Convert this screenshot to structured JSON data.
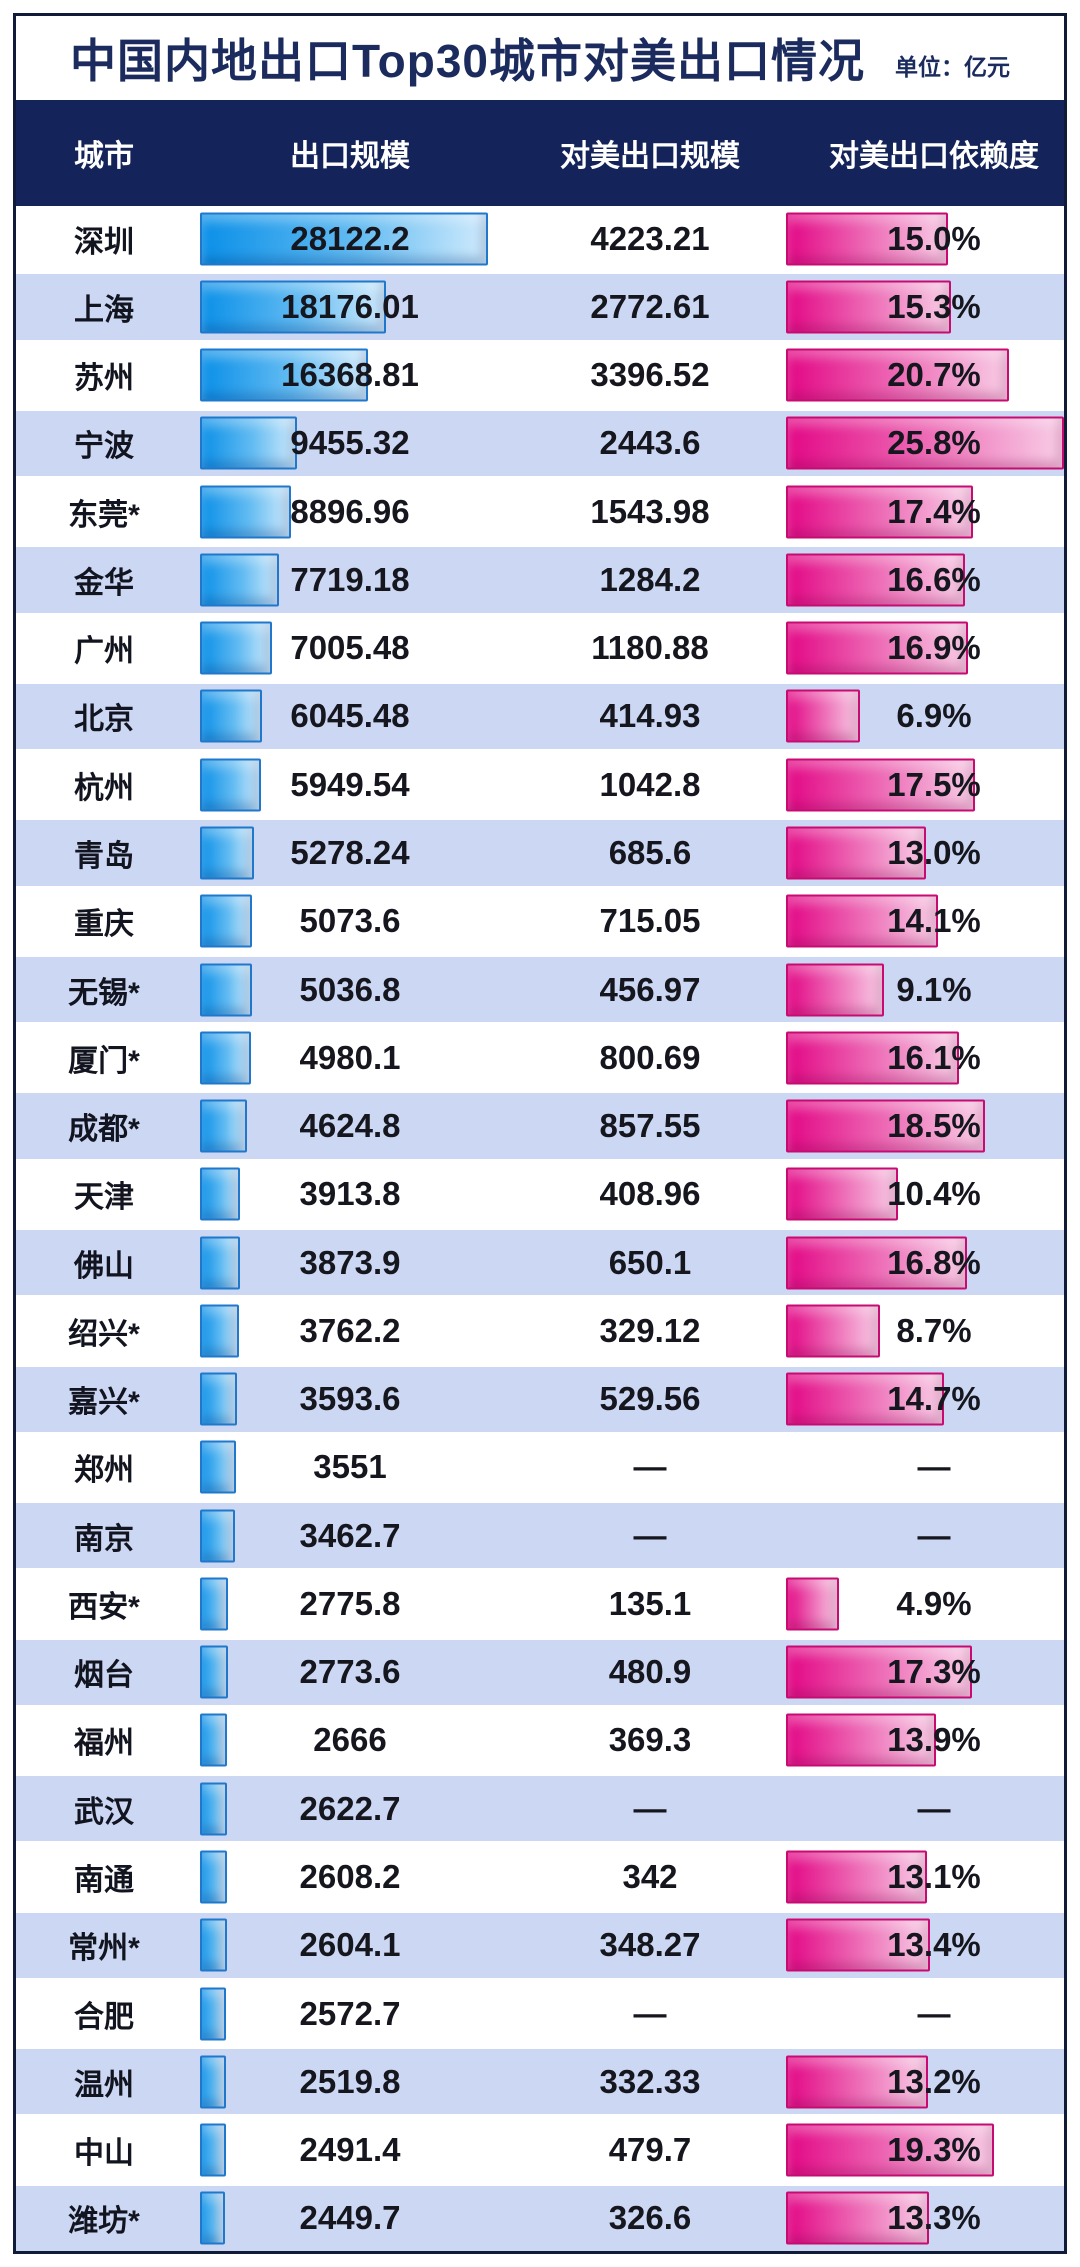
{
  "title": "中国内地出口Top30城市对美出口情况",
  "unit_label": "单位：亿元",
  "columns": [
    "城市",
    "出口规模",
    "对美出口规模",
    "对美出口依赖度"
  ],
  "missing_placeholder": "—",
  "colors": {
    "title_text": "#1b2b5e",
    "header_bg": "#14245a",
    "header_text": "#ffffff",
    "row_alt_bg": "#ccd8f3",
    "frame_border": "#101b38",
    "export_bar_start": "#0b90e8",
    "export_bar_end": "#cfeafc",
    "export_bar_border": "#1f78cc",
    "dependency_bar_start": "#e30886",
    "dependency_bar_end": "#f8cde6",
    "dependency_bar_border": "#c70b72",
    "value_text": "#15161e"
  },
  "rows": [
    {
      "city": "深圳",
      "export": "28122.2",
      "export_value": 28122.2,
      "us": "4223.21",
      "dep": "15.0%",
      "dep_value": 15.0
    },
    {
      "city": "上海",
      "export": "18176.01",
      "export_value": 18176.01,
      "us": "2772.61",
      "dep": "15.3%",
      "dep_value": 15.3
    },
    {
      "city": "苏州",
      "export": "16368.81",
      "export_value": 16368.81,
      "us": "3396.52",
      "dep": "20.7%",
      "dep_value": 20.7
    },
    {
      "city": "宁波",
      "export": "9455.32",
      "export_value": 9455.32,
      "us": "2443.6",
      "dep": "25.8%",
      "dep_value": 25.8
    },
    {
      "city": "东莞*",
      "export": "8896.96",
      "export_value": 8896.96,
      "us": "1543.98",
      "dep": "17.4%",
      "dep_value": 17.4
    },
    {
      "city": "金华",
      "export": "7719.18",
      "export_value": 7719.18,
      "us": "1284.2",
      "dep": "16.6%",
      "dep_value": 16.6
    },
    {
      "city": "广州",
      "export": "7005.48",
      "export_value": 7005.48,
      "us": "1180.88",
      "dep": "16.9%",
      "dep_value": 16.9
    },
    {
      "city": "北京",
      "export": "6045.48",
      "export_value": 6045.48,
      "us": "414.93",
      "dep": "6.9%",
      "dep_value": 6.9
    },
    {
      "city": "杭州",
      "export": "5949.54",
      "export_value": 5949.54,
      "us": "1042.8",
      "dep": "17.5%",
      "dep_value": 17.5
    },
    {
      "city": "青岛",
      "export": "5278.24",
      "export_value": 5278.24,
      "us": "685.6",
      "dep": "13.0%",
      "dep_value": 13.0
    },
    {
      "city": "重庆",
      "export": "5073.6",
      "export_value": 5073.6,
      "us": "715.05",
      "dep": "14.1%",
      "dep_value": 14.1
    },
    {
      "city": "无锡*",
      "export": "5036.8",
      "export_value": 5036.8,
      "us": "456.97",
      "dep": "9.1%",
      "dep_value": 9.1
    },
    {
      "city": "厦门*",
      "export": "4980.1",
      "export_value": 4980.1,
      "us": "800.69",
      "dep": "16.1%",
      "dep_value": 16.1
    },
    {
      "city": "成都*",
      "export": "4624.8",
      "export_value": 4624.8,
      "us": "857.55",
      "dep": "18.5%",
      "dep_value": 18.5
    },
    {
      "city": "天津",
      "export": "3913.8",
      "export_value": 3913.8,
      "us": "408.96",
      "dep": "10.4%",
      "dep_value": 10.4
    },
    {
      "city": "佛山",
      "export": "3873.9",
      "export_value": 3873.9,
      "us": "650.1",
      "dep": "16.8%",
      "dep_value": 16.8
    },
    {
      "city": "绍兴*",
      "export": "3762.2",
      "export_value": 3762.2,
      "us": "329.12",
      "dep": "8.7%",
      "dep_value": 8.7
    },
    {
      "city": "嘉兴*",
      "export": "3593.6",
      "export_value": 3593.6,
      "us": "529.56",
      "dep": "14.7%",
      "dep_value": 14.7
    },
    {
      "city": "郑州",
      "export": "3551",
      "export_value": 3551,
      "us": null,
      "dep": null,
      "dep_value": null
    },
    {
      "city": "南京",
      "export": "3462.7",
      "export_value": 3462.7,
      "us": null,
      "dep": null,
      "dep_value": null
    },
    {
      "city": "西安*",
      "export": "2775.8",
      "export_value": 2775.8,
      "us": "135.1",
      "dep": "4.9%",
      "dep_value": 4.9
    },
    {
      "city": "烟台",
      "export": "2773.6",
      "export_value": 2773.6,
      "us": "480.9",
      "dep": "17.3%",
      "dep_value": 17.3
    },
    {
      "city": "福州",
      "export": "2666",
      "export_value": 2666,
      "us": "369.3",
      "dep": "13.9%",
      "dep_value": 13.9
    },
    {
      "city": "武汉",
      "export": "2622.7",
      "export_value": 2622.7,
      "us": null,
      "dep": null,
      "dep_value": null
    },
    {
      "city": "南通",
      "export": "2608.2",
      "export_value": 2608.2,
      "us": "342",
      "dep": "13.1%",
      "dep_value": 13.1
    },
    {
      "city": "常州*",
      "export": "2604.1",
      "export_value": 2604.1,
      "us": "348.27",
      "dep": "13.4%",
      "dep_value": 13.4
    },
    {
      "city": "合肥",
      "export": "2572.7",
      "export_value": 2572.7,
      "us": null,
      "dep": null,
      "dep_value": null
    },
    {
      "city": "温州",
      "export": "2519.8",
      "export_value": 2519.8,
      "us": "332.33",
      "dep": "13.2%",
      "dep_value": 13.2
    },
    {
      "city": "中山",
      "export": "2491.4",
      "export_value": 2491.4,
      "us": "479.7",
      "dep": "19.3%",
      "dep_value": 19.3
    },
    {
      "city": "潍坊*",
      "export": "2449.7",
      "export_value": 2449.7,
      "us": "326.6",
      "dep": "13.3%",
      "dep_value": 13.3
    }
  ],
  "chart_data": {
    "type": "bar",
    "title": "中国内地出口Top30城市对美出口情况",
    "unit": "亿元",
    "orientation": "horizontal",
    "categories": [
      "深圳",
      "上海",
      "苏州",
      "宁波",
      "东莞*",
      "金华",
      "广州",
      "北京",
      "杭州",
      "青岛",
      "重庆",
      "无锡*",
      "厦门*",
      "成都*",
      "天津",
      "佛山",
      "绍兴*",
      "嘉兴*",
      "郑州",
      "南京",
      "西安*",
      "烟台",
      "福州",
      "武汉",
      "南通",
      "常州*",
      "合肥",
      "温州",
      "中山",
      "潍坊*"
    ],
    "series": [
      {
        "name": "出口规模",
        "color": "#0b90e8",
        "values": [
          28122.2,
          18176.01,
          16368.81,
          9455.32,
          8896.96,
          7719.18,
          7005.48,
          6045.48,
          5949.54,
          5278.24,
          5073.6,
          5036.8,
          4980.1,
          4624.8,
          3913.8,
          3873.9,
          3762.2,
          3593.6,
          3551,
          3462.7,
          2775.8,
          2773.6,
          2666,
          2622.7,
          2608.2,
          2604.1,
          2572.7,
          2519.8,
          2491.4,
          2449.7
        ]
      },
      {
        "name": "对美出口规模",
        "color": null,
        "values": [
          4223.21,
          2772.61,
          3396.52,
          2443.6,
          1543.98,
          1284.2,
          1180.88,
          414.93,
          1042.8,
          685.6,
          715.05,
          456.97,
          800.69,
          857.55,
          408.96,
          650.1,
          329.12,
          529.56,
          null,
          null,
          135.1,
          480.9,
          369.3,
          null,
          342,
          348.27,
          null,
          332.33,
          479.7,
          326.6
        ]
      },
      {
        "name": "对美出口依赖度(%)",
        "color": "#e30886",
        "values": [
          15.0,
          15.3,
          20.7,
          25.8,
          17.4,
          16.6,
          16.9,
          6.9,
          17.5,
          13.0,
          14.1,
          9.1,
          16.1,
          18.5,
          10.4,
          16.8,
          8.7,
          14.7,
          null,
          null,
          4.9,
          17.3,
          13.9,
          null,
          13.1,
          13.4,
          null,
          13.2,
          19.3,
          13.3
        ]
      }
    ],
    "legend_position": "none",
    "grid": false
  }
}
